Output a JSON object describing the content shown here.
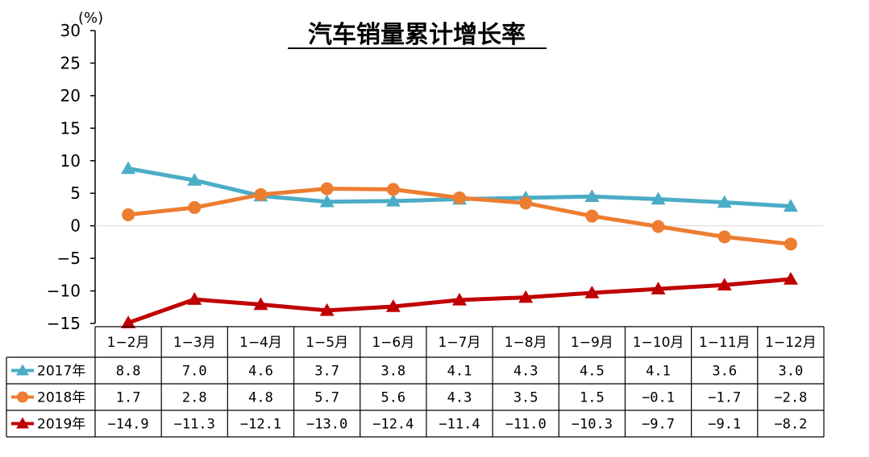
{
  "chart_data": {
    "type": "line",
    "title": "汽车销量累计增长率",
    "ylabel": "(%)",
    "ylim": [
      -15,
      30
    ],
    "yticks": [
      "30",
      "25",
      "20",
      "15",
      "10",
      "5",
      "0",
      "−5",
      "−10",
      "−15"
    ],
    "ytick_values": [
      30,
      25,
      20,
      15,
      10,
      5,
      0,
      -5,
      -10,
      -15
    ],
    "categories": [
      "1−2月",
      "1−3月",
      "1−4月",
      "1−5月",
      "1−6月",
      "1−7月",
      "1−8月",
      "1−9月",
      "1−10月",
      "1−11月",
      "1−12月"
    ],
    "grid": false,
    "legend": "data-table-left",
    "series": [
      {
        "name": "2017年",
        "color": "#4bacc6",
        "marker": "triangle",
        "values": [
          8.8,
          7.0,
          4.6,
          3.7,
          3.8,
          4.1,
          4.3,
          4.5,
          4.1,
          3.6,
          3.0
        ],
        "labels": [
          "8.8",
          "7.0",
          "4.6",
          "3.7",
          "3.8",
          "4.1",
          "4.3",
          "4.5",
          "4.1",
          "3.6",
          "3.0"
        ]
      },
      {
        "name": "2018年",
        "color": "#ed7d31",
        "marker": "circle",
        "values": [
          1.7,
          2.8,
          4.8,
          5.7,
          5.6,
          4.3,
          3.5,
          1.5,
          -0.1,
          -1.7,
          -2.8
        ],
        "labels": [
          "1.7",
          "2.8",
          "4.8",
          "5.7",
          "5.6",
          "4.3",
          "3.5",
          "1.5",
          "−0.1",
          "−1.7",
          "−2.8"
        ]
      },
      {
        "name": "2019年",
        "color": "#c00000",
        "marker": "triangle",
        "values": [
          -14.9,
          -11.3,
          -12.1,
          -13.0,
          -12.4,
          -11.4,
          -11.0,
          -10.3,
          -9.7,
          -9.1,
          -8.2
        ],
        "labels": [
          "−14.9",
          "−11.3",
          "−12.1",
          "−13.0",
          "−12.4",
          "−11.4",
          "−11.0",
          "−10.3",
          "−9.7",
          "−9.1",
          "−8.2"
        ]
      }
    ]
  }
}
